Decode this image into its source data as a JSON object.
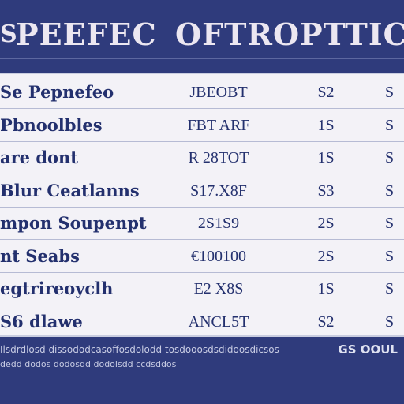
{
  "header": {
    "left_mark": "S",
    "title_part1": "PEEFEC",
    "title_part2": "OFTROPTTIC"
  },
  "table": {
    "rows": [
      {
        "name": "Se Pepnefeo",
        "code": "JBEOBT",
        "v1": "S2",
        "v2": "S"
      },
      {
        "name": "Pbnoolbles",
        "code": "FBT ARF",
        "v1": "1S",
        "v2": "S"
      },
      {
        "name": "are dont",
        "code": "R 28TOT",
        "v1": "1S",
        "v2": "S"
      },
      {
        "name": "Blur Ceatlanns",
        "code": "S17.X8F",
        "v1": "S3",
        "v2": "S"
      },
      {
        "name": "mpon Soupenpt",
        "code": "2S1S9",
        "v1": "2S",
        "v2": "S"
      },
      {
        "name": "nt Seabs",
        "code": "€100100",
        "v1": "2S",
        "v2": "S"
      },
      {
        "name": "egtrireoyclh",
        "code": "E2 X8S",
        "v1": "1S",
        "v2": "S"
      },
      {
        "name": "S6 dlawe",
        "code": "ANCL5T",
        "v1": "S2",
        "v2": "S"
      }
    ]
  },
  "footer": {
    "line1": "Ilsdrdlosd dissododcasoffosdolodd tosdooosdsdidoosdicsos",
    "tag": "GS OOUL",
    "line2": "dedd dodos dodosdd dodolsdd ccdsddos"
  }
}
